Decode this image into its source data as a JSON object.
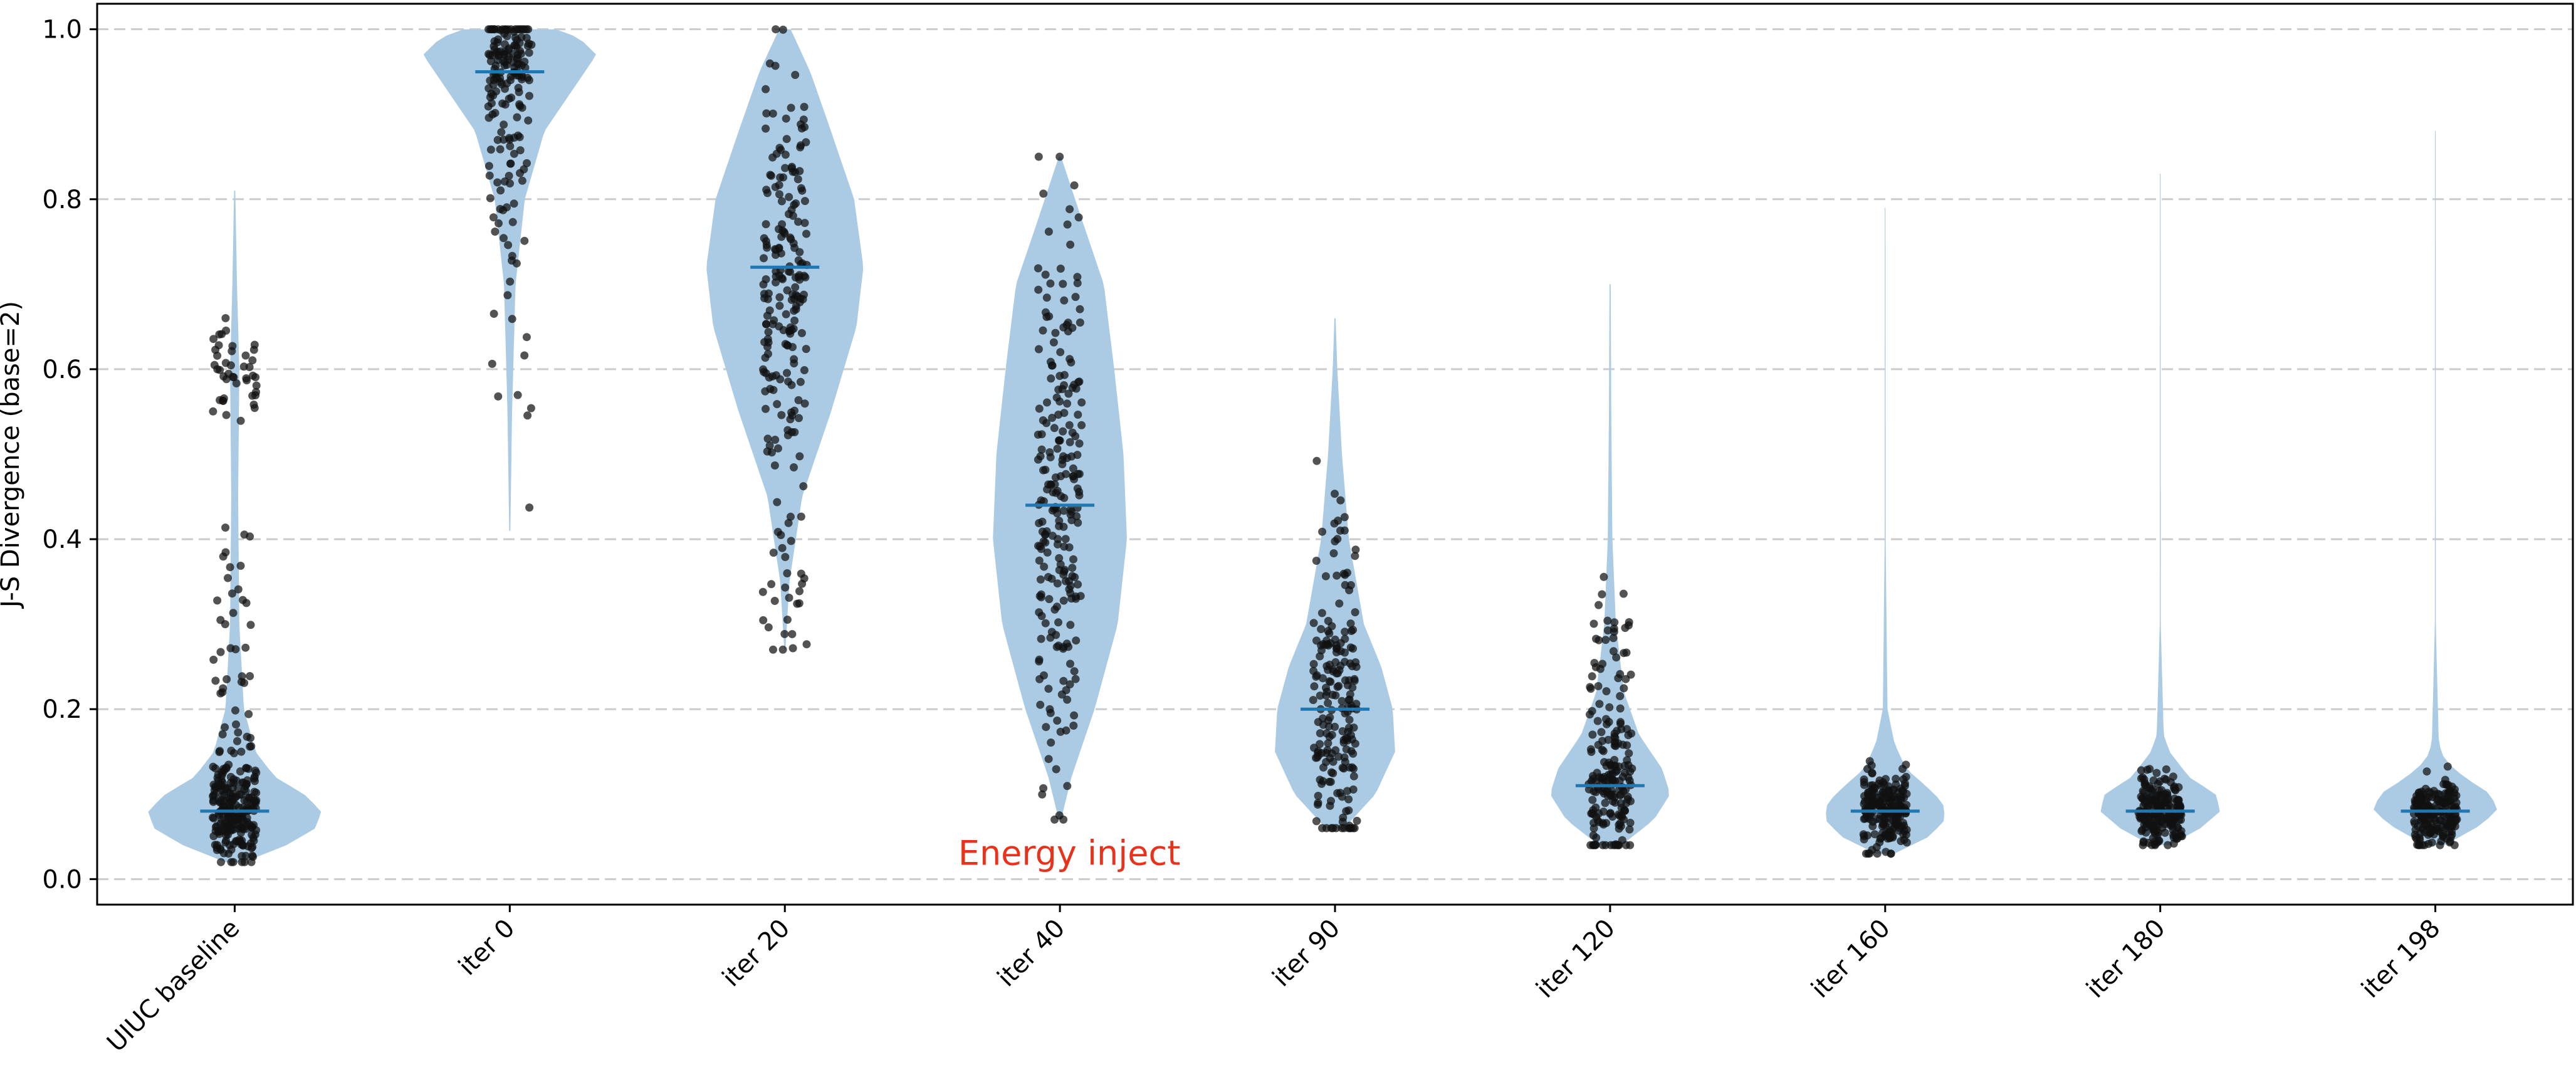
{
  "chart_data": {
    "type": "violin",
    "title": "",
    "xlabel": "",
    "ylabel": "J-S Divergence (base=2)",
    "ylim": [
      -0.03,
      1.03
    ],
    "yticks": [
      0.0,
      0.2,
      0.4,
      0.6,
      0.8,
      1.0
    ],
    "ytick_labels": [
      "0.0",
      "0.2",
      "0.4",
      "0.6",
      "0.8",
      "1.0"
    ],
    "grid": "horizontal dashed",
    "categories": [
      "UIUC baseline",
      "iter 0",
      "iter 20",
      "iter 40",
      "iter 90",
      "iter 120",
      "iter 160",
      "iter 180",
      "iter 198"
    ],
    "colors": {
      "violin": "#aacbe3",
      "median": "#1f77b4",
      "points": "#111111",
      "grid": "#cccccc",
      "annotation": "#e8321b"
    },
    "series": [
      {
        "name": "UIUC baseline",
        "median": 0.08,
        "min": 0.02,
        "max": 0.81,
        "n": 320,
        "profile": [
          [
            0.02,
            0.08
          ],
          [
            0.04,
            0.45
          ],
          [
            0.06,
            0.7
          ],
          [
            0.08,
            0.75
          ],
          [
            0.1,
            0.6
          ],
          [
            0.12,
            0.35
          ],
          [
            0.15,
            0.18
          ],
          [
            0.2,
            0.08
          ],
          [
            0.3,
            0.04
          ],
          [
            0.45,
            0.03
          ],
          [
            0.6,
            0.04
          ],
          [
            0.7,
            0.02
          ],
          [
            0.81,
            0.005
          ]
        ],
        "clusters": [
          [
            0.08,
            0.03,
            0.7
          ],
          [
            0.22,
            0.1,
            0.18
          ],
          [
            0.6,
            0.03,
            0.12
          ]
        ]
      },
      {
        "name": "iter 0",
        "median": 0.95,
        "min": 0.41,
        "max": 1.0,
        "n": 180,
        "profile": [
          [
            0.41,
            0.005
          ],
          [
            0.55,
            0.02
          ],
          [
            0.7,
            0.05
          ],
          [
            0.8,
            0.13
          ],
          [
            0.88,
            0.3
          ],
          [
            0.93,
            0.55
          ],
          [
            0.97,
            0.75
          ],
          [
            0.99,
            0.6
          ],
          [
            1.0,
            0.4
          ]
        ],
        "clusters": [
          [
            0.97,
            0.03,
            0.6
          ],
          [
            0.85,
            0.07,
            0.34
          ],
          [
            0.6,
            0.12,
            0.06
          ]
        ]
      },
      {
        "name": "iter 20",
        "median": 0.72,
        "min": 0.27,
        "max": 1.0,
        "n": 220,
        "profile": [
          [
            0.27,
            0.005
          ],
          [
            0.35,
            0.04
          ],
          [
            0.45,
            0.15
          ],
          [
            0.55,
            0.4
          ],
          [
            0.65,
            0.62
          ],
          [
            0.72,
            0.68
          ],
          [
            0.8,
            0.6
          ],
          [
            0.88,
            0.4
          ],
          [
            0.95,
            0.22
          ],
          [
            1.0,
            0.05
          ]
        ],
        "clusters": [
          [
            0.7,
            0.12,
            0.9
          ],
          [
            0.35,
            0.05,
            0.1
          ]
        ]
      },
      {
        "name": "iter 40",
        "median": 0.44,
        "min": 0.07,
        "max": 0.85,
        "n": 230,
        "profile": [
          [
            0.07,
            0.01
          ],
          [
            0.12,
            0.1
          ],
          [
            0.2,
            0.3
          ],
          [
            0.3,
            0.5
          ],
          [
            0.4,
            0.58
          ],
          [
            0.5,
            0.55
          ],
          [
            0.6,
            0.47
          ],
          [
            0.7,
            0.38
          ],
          [
            0.78,
            0.18
          ],
          [
            0.85,
            0.01
          ]
        ],
        "clusters": [
          [
            0.44,
            0.16,
            1.0
          ]
        ]
      },
      {
        "name": "iter 90",
        "median": 0.2,
        "min": 0.06,
        "max": 0.66,
        "n": 200,
        "profile": [
          [
            0.06,
            0.08
          ],
          [
            0.1,
            0.35
          ],
          [
            0.15,
            0.52
          ],
          [
            0.2,
            0.5
          ],
          [
            0.25,
            0.4
          ],
          [
            0.3,
            0.25
          ],
          [
            0.4,
            0.12
          ],
          [
            0.5,
            0.06
          ],
          [
            0.6,
            0.02
          ],
          [
            0.66,
            0.005
          ]
        ],
        "clusters": [
          [
            0.2,
            0.1,
            1.0
          ]
        ]
      },
      {
        "name": "iter 120",
        "median": 0.11,
        "min": 0.04,
        "max": 0.7,
        "n": 200,
        "profile": [
          [
            0.04,
            0.1
          ],
          [
            0.07,
            0.38
          ],
          [
            0.1,
            0.52
          ],
          [
            0.13,
            0.45
          ],
          [
            0.17,
            0.25
          ],
          [
            0.22,
            0.12
          ],
          [
            0.3,
            0.05
          ],
          [
            0.4,
            0.02
          ],
          [
            0.55,
            0.01
          ],
          [
            0.7,
            0.005
          ]
        ],
        "clusters": [
          [
            0.11,
            0.05,
            0.8
          ],
          [
            0.25,
            0.06,
            0.2
          ]
        ]
      },
      {
        "name": "iter 160",
        "median": 0.08,
        "min": 0.03,
        "max": 0.79,
        "n": 200,
        "profile": [
          [
            0.03,
            0.08
          ],
          [
            0.05,
            0.38
          ],
          [
            0.07,
            0.52
          ],
          [
            0.09,
            0.5
          ],
          [
            0.11,
            0.35
          ],
          [
            0.13,
            0.18
          ],
          [
            0.16,
            0.08
          ],
          [
            0.2,
            0.02
          ],
          [
            0.4,
            0.004
          ],
          [
            0.79,
            0.003
          ]
        ],
        "clusters": [
          [
            0.08,
            0.025,
            1.0
          ]
        ]
      },
      {
        "name": "iter 180",
        "median": 0.08,
        "min": 0.04,
        "max": 0.83,
        "n": 200,
        "profile": [
          [
            0.04,
            0.08
          ],
          [
            0.06,
            0.35
          ],
          [
            0.08,
            0.52
          ],
          [
            0.1,
            0.48
          ],
          [
            0.12,
            0.25
          ],
          [
            0.15,
            0.08
          ],
          [
            0.17,
            0.03
          ],
          [
            0.3,
            0.004
          ],
          [
            0.83,
            0.003
          ]
        ],
        "clusters": [
          [
            0.08,
            0.02,
            1.0
          ]
        ]
      },
      {
        "name": "iter 198",
        "median": 0.08,
        "min": 0.04,
        "max": 0.88,
        "n": 200,
        "profile": [
          [
            0.04,
            0.08
          ],
          [
            0.06,
            0.35
          ],
          [
            0.08,
            0.54
          ],
          [
            0.1,
            0.48
          ],
          [
            0.12,
            0.25
          ],
          [
            0.14,
            0.08
          ],
          [
            0.16,
            0.03
          ],
          [
            0.3,
            0.004
          ],
          [
            0.88,
            0.003
          ]
        ],
        "clusters": [
          [
            0.08,
            0.018,
            1.0
          ]
        ]
      }
    ],
    "annotations": [
      {
        "text": "Energy inject",
        "category": "iter 40",
        "y": 0.03
      }
    ]
  }
}
